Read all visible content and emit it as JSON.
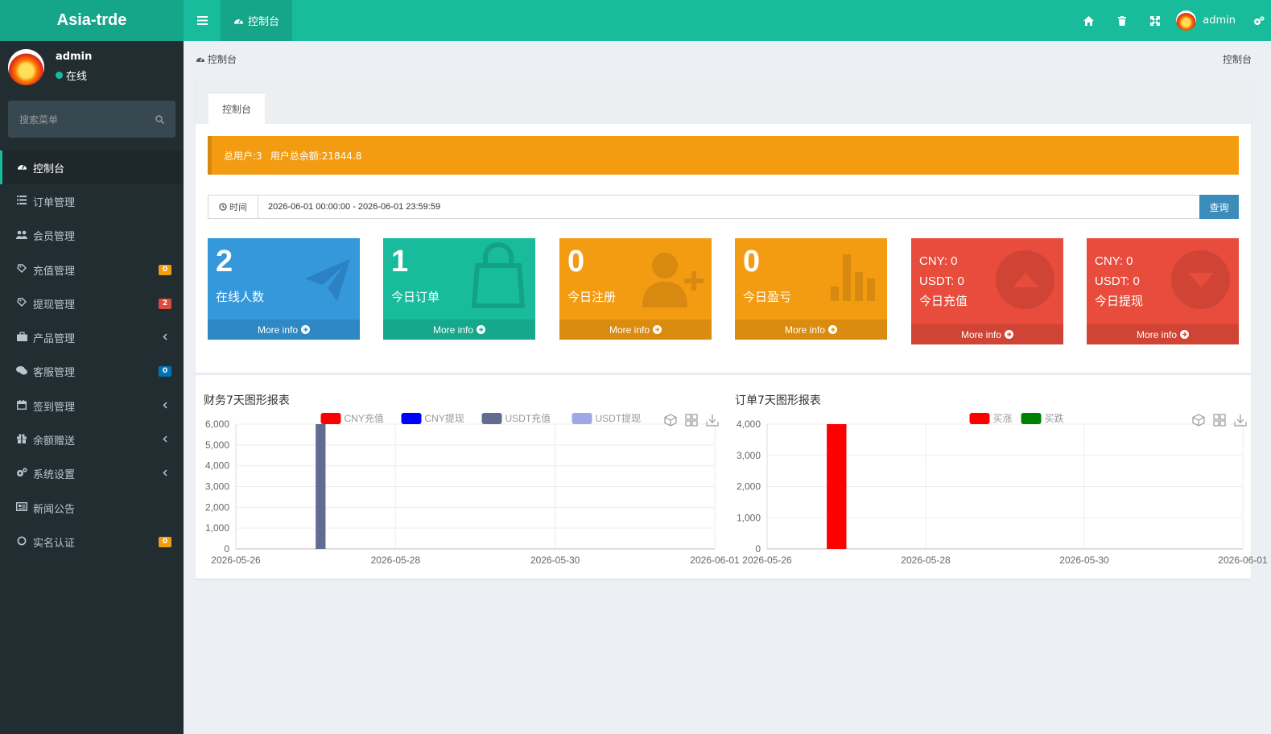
{
  "app": {
    "title": "Asia-trde"
  },
  "topbar": {
    "tab_label": "控制台",
    "user": "admin"
  },
  "sidebar": {
    "user": {
      "name": "admin",
      "status": "在线"
    },
    "search_placeholder": "搜索菜单",
    "items": [
      {
        "label": "控制台",
        "icon": "dashboard-icon"
      },
      {
        "label": "订单管理",
        "icon": "list-icon"
      },
      {
        "label": "会员管理",
        "icon": "users-icon"
      },
      {
        "label": "充值管理",
        "icon": "recharge-icon",
        "badge": "0",
        "badge_color": "#f39c12"
      },
      {
        "label": "提现管理",
        "icon": "withdraw-icon",
        "badge": "2",
        "badge_color": "#dd4b39"
      },
      {
        "label": "产品管理",
        "icon": "briefcase-icon",
        "chevron": true
      },
      {
        "label": "客服管理",
        "icon": "chat-icon",
        "badge": "0",
        "badge_color": "#0073b7"
      },
      {
        "label": "签到管理",
        "icon": "calendar-icon",
        "chevron": true
      },
      {
        "label": "余额赠送",
        "icon": "gift-icon",
        "chevron": true
      },
      {
        "label": "系统设置",
        "icon": "cogs-icon",
        "chevron": true
      },
      {
        "label": "新闻公告",
        "icon": "newspaper-icon"
      },
      {
        "label": "实名认证",
        "icon": "circle-icon",
        "badge": "0",
        "badge_color": "#f39c12"
      }
    ]
  },
  "breadcrumb": {
    "left": "控制台",
    "right": "控制台"
  },
  "panel_tab": "控制台",
  "alert": {
    "total_users": "总用户:3",
    "total_balance": "用户总余额:21844.8"
  },
  "time_filter": {
    "label": "时间",
    "value": "2026-06-01 00:00:00 - 2026-06-01 23:59:59",
    "button": "查询"
  },
  "stats": [
    {
      "value": "2",
      "label": "在线人数",
      "more": "More info",
      "color": "#3498db",
      "icon": "paper-plane-icon"
    },
    {
      "value": "1",
      "label": "今日订单",
      "more": "More info",
      "color": "#18bc9c",
      "icon": "shopping-bag-icon"
    },
    {
      "value": "0",
      "label": "今日注册",
      "more": "More info",
      "color": "#f39c12",
      "icon": "user-plus-icon"
    },
    {
      "value": "0",
      "label": "今日盈亏",
      "more": "More info",
      "color": "#f39c12",
      "icon": "bar-chart-icon"
    }
  ],
  "money": [
    {
      "cny": "CNY:  0",
      "usdt": "USDT:  0",
      "label": "今日充值",
      "more": "More info",
      "color": "#e74c3c",
      "icon": "arrow-up-icon"
    },
    {
      "cny": "CNY:  0",
      "usdt": "USDT:  0",
      "label": "今日提现",
      "more": "More info",
      "color": "#e74c3c",
      "icon": "arrow-down-icon"
    }
  ],
  "chart_data": [
    {
      "type": "bar",
      "title": "财务7天图形报表",
      "categories": [
        "2026-05-26",
        "2026-05-27",
        "2026-05-28",
        "2026-05-29",
        "2026-05-30",
        "2026-05-31",
        "2026-06-01"
      ],
      "x_tick_labels": [
        "2026-05-26",
        "2026-05-28",
        "2026-05-30",
        "2026-06-01"
      ],
      "ylim": [
        0,
        6000
      ],
      "yticks": [
        0,
        1000,
        2000,
        3000,
        4000,
        5000,
        6000
      ],
      "series": [
        {
          "name": "CNY充值",
          "color": "#ff0000",
          "values": [
            0,
            0,
            0,
            0,
            0,
            0,
            0
          ]
        },
        {
          "name": "CNY提现",
          "color": "#0000ff",
          "values": [
            0,
            0,
            0,
            0,
            0,
            0,
            0
          ]
        },
        {
          "name": "USDT充值",
          "color": "#626c91",
          "values": [
            0,
            6000,
            0,
            0,
            0,
            0,
            0
          ]
        },
        {
          "name": "USDT提现",
          "color": "#a0a7e6",
          "values": [
            0,
            0,
            0,
            0,
            0,
            0,
            0
          ]
        }
      ]
    },
    {
      "type": "bar",
      "title": "订单7天图形报表",
      "categories": [
        "2026-05-26",
        "2026-05-27",
        "2026-05-28",
        "2026-05-29",
        "2026-05-30",
        "2026-05-31",
        "2026-06-01"
      ],
      "x_tick_labels": [
        "2026-05-26",
        "2026-05-28",
        "2026-05-30",
        "2026-06-01"
      ],
      "ylim": [
        0,
        4000
      ],
      "yticks": [
        0,
        1000,
        2000,
        3000,
        4000
      ],
      "series": [
        {
          "name": "买涨",
          "color": "#ff0000",
          "values": [
            0,
            4000,
            0,
            0,
            0,
            0,
            0
          ]
        },
        {
          "name": "买跌",
          "color": "#008000",
          "values": [
            0,
            0,
            0,
            0,
            0,
            0,
            0
          ]
        }
      ]
    }
  ]
}
